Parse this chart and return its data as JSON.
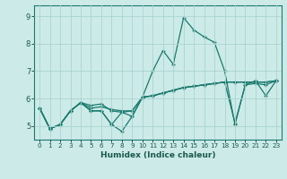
{
  "xlabel": "Humidex (Indice chaleur)",
  "bg_color": "#cceae8",
  "grid_color": "#aad4d0",
  "line_color": "#1a7a6e",
  "xlim": [
    -0.5,
    23.5
  ],
  "ylim": [
    4.5,
    9.4
  ],
  "yticks": [
    5,
    6,
    7,
    8,
    9
  ],
  "xticks": [
    0,
    1,
    2,
    3,
    4,
    5,
    6,
    7,
    8,
    9,
    10,
    11,
    12,
    13,
    14,
    15,
    16,
    17,
    18,
    19,
    20,
    21,
    22,
    23
  ],
  "series": [
    [
      5.65,
      4.9,
      5.05,
      5.55,
      5.85,
      5.55,
      5.55,
      5.05,
      5.5,
      5.35,
      6.05,
      7.0,
      7.75,
      7.25,
      8.95,
      8.5,
      8.25,
      8.05,
      7.0,
      5.05,
      6.5,
      6.65,
      6.1,
      6.65
    ],
    [
      5.65,
      4.9,
      5.05,
      5.55,
      5.85,
      5.55,
      5.55,
      5.05,
      4.8,
      5.35,
      6.05,
      6.1,
      6.2,
      6.3,
      6.4,
      6.45,
      6.5,
      6.55,
      6.6,
      5.1,
      6.5,
      6.55,
      6.5,
      6.65
    ],
    [
      5.65,
      4.9,
      5.05,
      5.55,
      5.85,
      5.65,
      5.7,
      5.6,
      5.55,
      5.55,
      6.05,
      6.1,
      6.2,
      6.3,
      6.4,
      6.45,
      6.5,
      6.55,
      6.6,
      6.6,
      6.6,
      6.6,
      6.6,
      6.65
    ],
    [
      5.65,
      4.9,
      5.05,
      5.55,
      5.85,
      5.75,
      5.8,
      5.55,
      5.5,
      5.55,
      6.05,
      6.1,
      6.2,
      6.3,
      6.4,
      6.45,
      6.5,
      6.55,
      6.6,
      6.6,
      6.6,
      6.6,
      6.6,
      6.65
    ]
  ]
}
